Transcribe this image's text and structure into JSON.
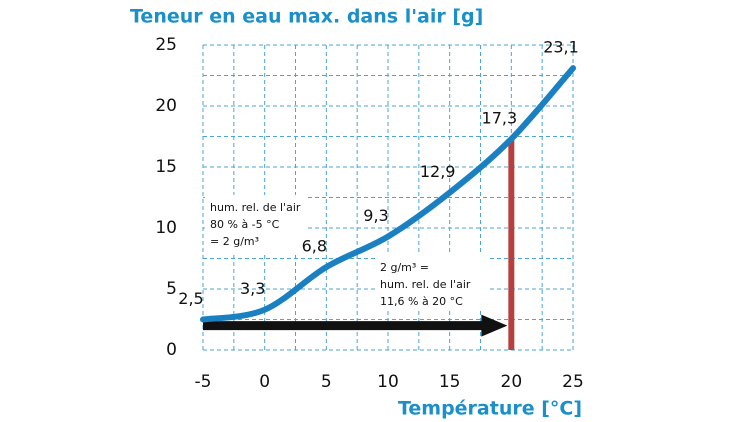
{
  "chart_data": {
    "type": "line",
    "title": "Teneur en eau max. dans l'air [g]",
    "x_label": "Température [°C]",
    "x": [
      -5,
      0,
      5,
      10,
      15,
      20,
      25
    ],
    "series": [
      {
        "color": "#1b80c2",
        "values": [
          2.5,
          3.3,
          6.8,
          9.3,
          12.9,
          17.3,
          23.1
        ],
        "value_labels": [
          "2,5",
          "3,3",
          "6,8",
          "9,3",
          "12,9",
          "17,3",
          "23,1"
        ]
      }
    ],
    "xlim": [
      -5,
      25
    ],
    "xticks": [
      -5,
      0,
      5,
      10,
      15,
      20,
      25
    ],
    "ylim": [
      0,
      25
    ],
    "yticks": [
      0,
      5,
      10,
      15,
      20,
      25
    ],
    "xgrid": [
      -5,
      -2.5,
      0,
      2.5,
      5,
      7.5,
      10,
      12.5,
      15,
      17.5,
      20,
      22.5,
      25
    ],
    "ygrid": [
      0,
      2.5,
      5,
      7.5,
      10,
      12.5,
      15,
      17.5,
      20,
      22.5,
      25
    ],
    "grid": true,
    "grid_color": "#4da3d6",
    "marker_line": {
      "x": 20,
      "y": 17.3,
      "color": "#b5403f"
    },
    "arrow": {
      "x": [
        -5,
        20
      ],
      "y": 2,
      "color": "#111111"
    },
    "annotations": [
      {
        "lines": [
          "hum. rel. de l'air",
          "80 % à -5 °C",
          "= 2 g/m³"
        ]
      },
      {
        "lines": [
          "2 g/m³ =",
          "hum. rel. de l'air",
          "11,6 % à 20 °C"
        ]
      }
    ]
  }
}
